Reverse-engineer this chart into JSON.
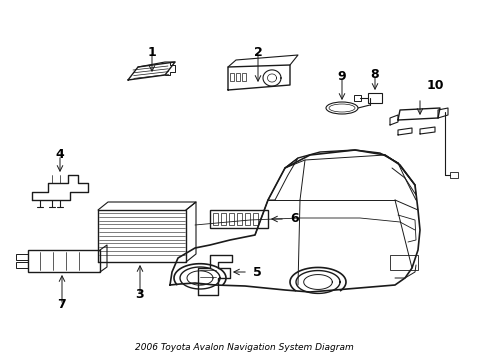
{
  "title": "2006 Toyota Avalon Navigation System Diagram",
  "bg_color": "#ffffff",
  "line_color": "#1a1a1a",
  "label_color": "#000000",
  "figsize": [
    4.89,
    3.6
  ],
  "dpi": 100
}
